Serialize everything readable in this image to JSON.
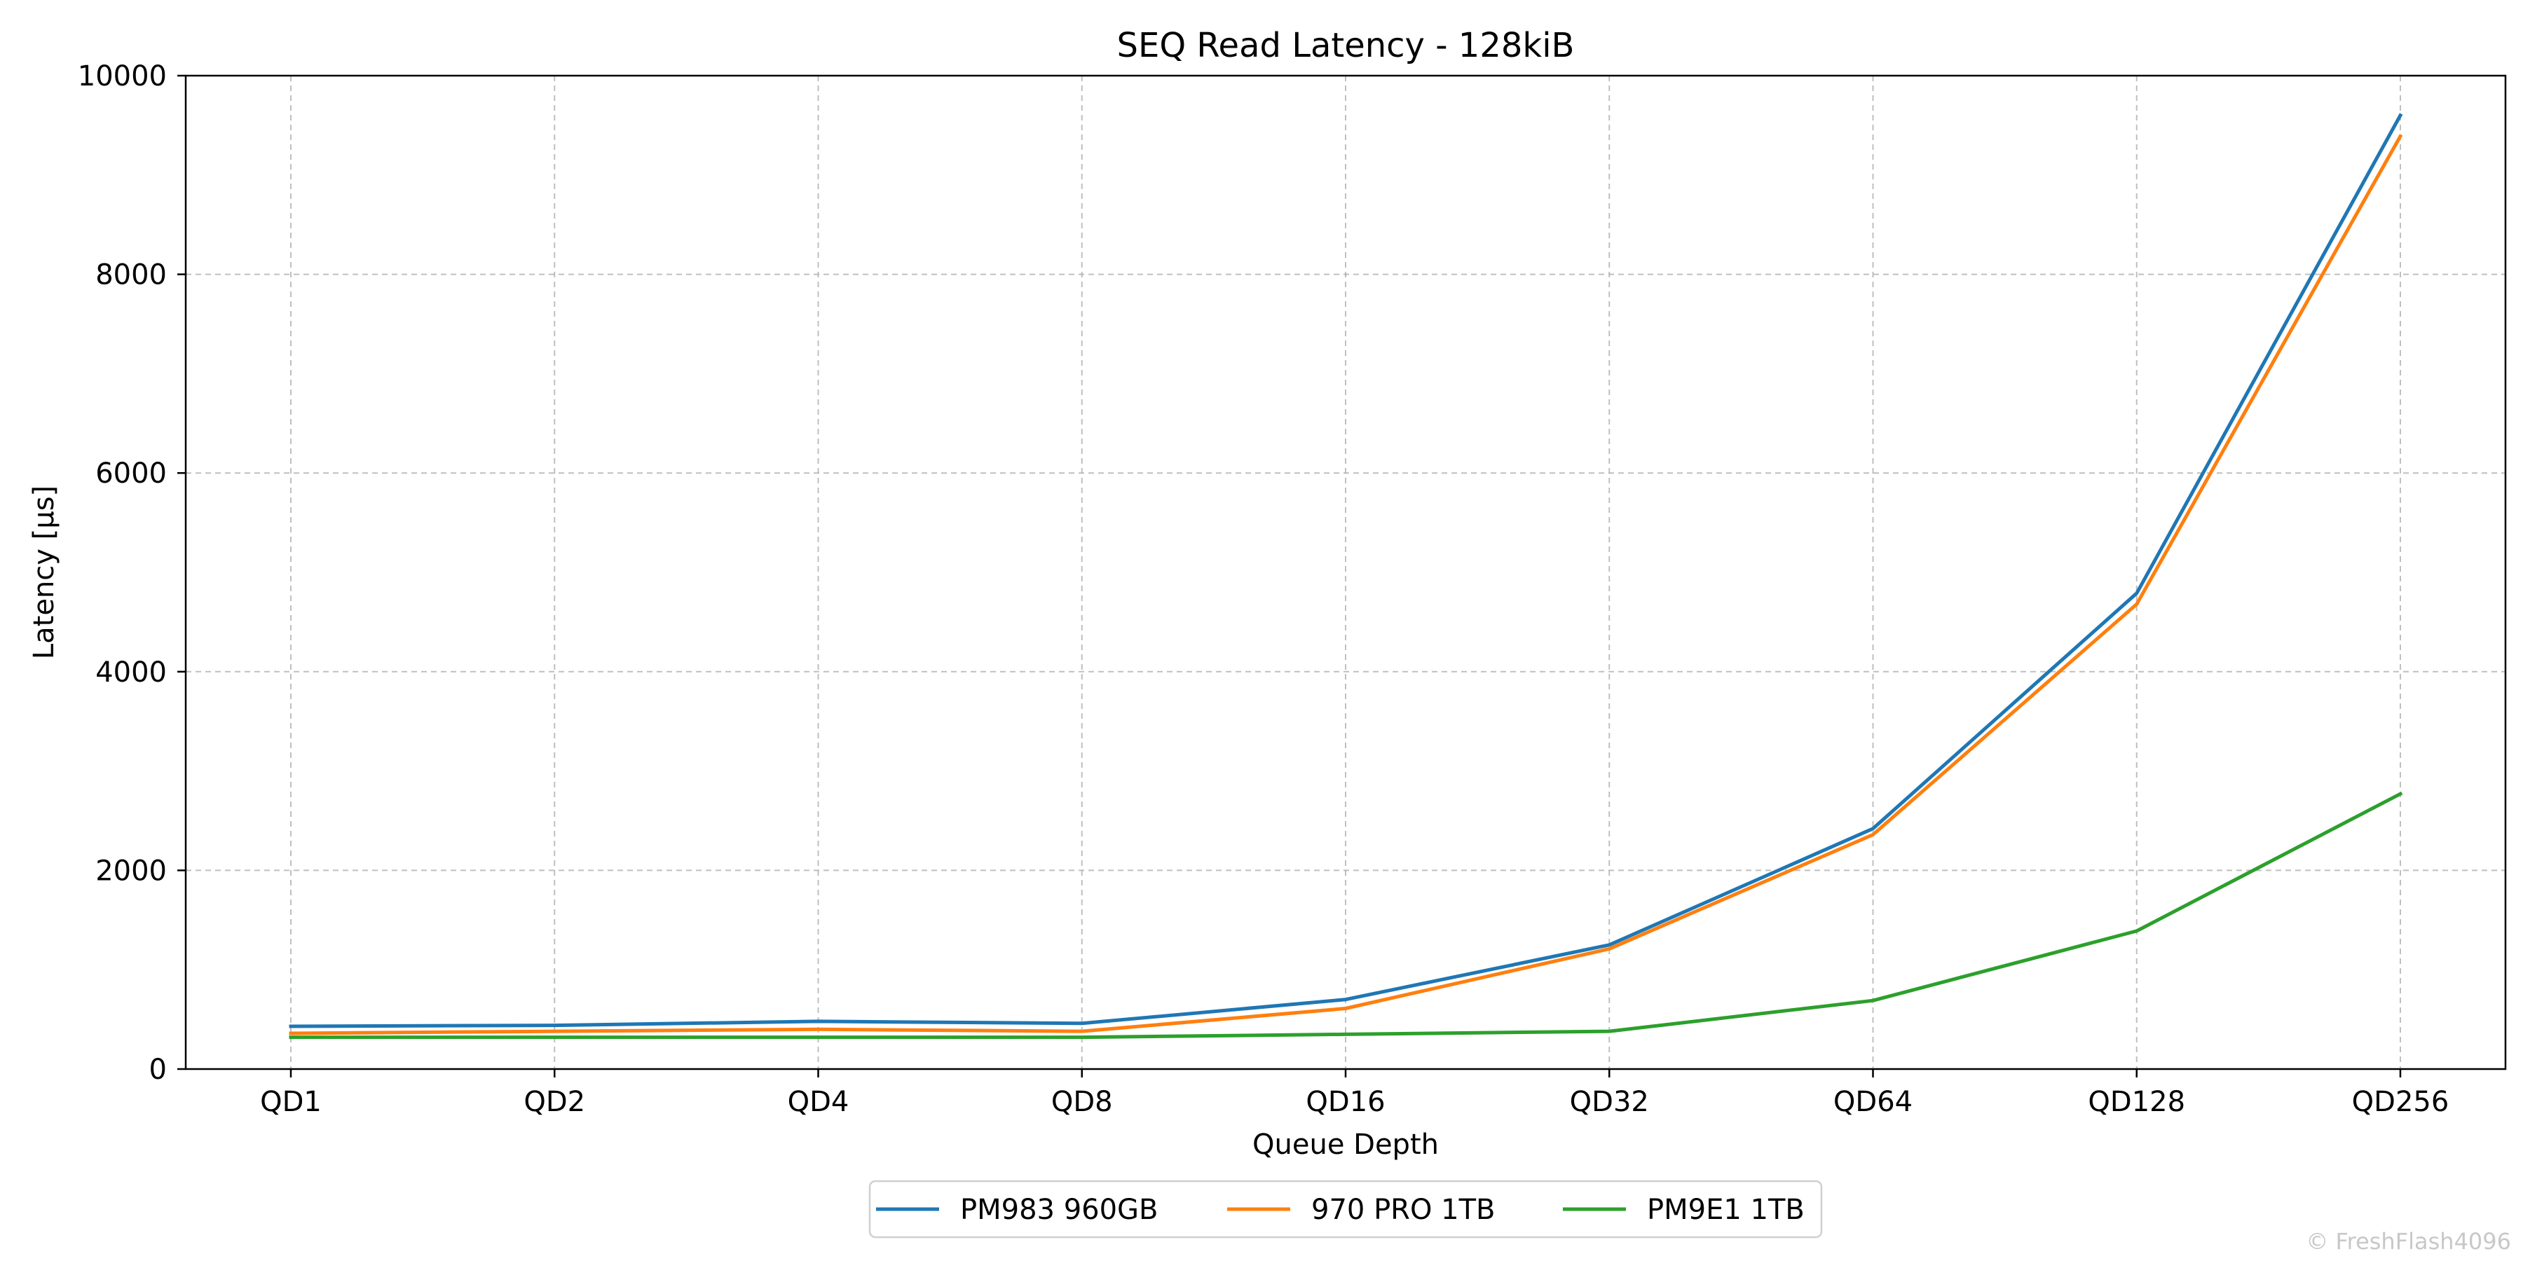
{
  "chart_data": {
    "type": "line",
    "title": "SEQ Read Latency - 128kiB",
    "xlabel": "Queue Depth",
    "ylabel": "Latency [µs]",
    "categories": [
      "QD1",
      "QD2",
      "QD4",
      "QD8",
      "QD16",
      "QD32",
      "QD64",
      "QD128",
      "QD256"
    ],
    "ylim": [
      0,
      10000
    ],
    "yticks": [
      "0",
      "2000",
      "4000",
      "6000",
      "8000",
      "10000"
    ],
    "grid": true,
    "legend_position": "bottom-center",
    "series": [
      {
        "name": "PM983 960GB",
        "color": "#1f77b4",
        "values": [
          430,
          440,
          480,
          460,
          700,
          1250,
          2420,
          4790,
          9600
        ]
      },
      {
        "name": "970 PRO 1TB",
        "color": "#ff7f0e",
        "values": [
          360,
          380,
          400,
          380,
          610,
          1210,
          2360,
          4680,
          9390
        ]
      },
      {
        "name": "PM9E1 1TB",
        "color": "#2ca02c",
        "values": [
          320,
          320,
          320,
          320,
          350,
          380,
          690,
          1390,
          2770
        ]
      }
    ]
  },
  "watermark": "© FreshFlash4096"
}
